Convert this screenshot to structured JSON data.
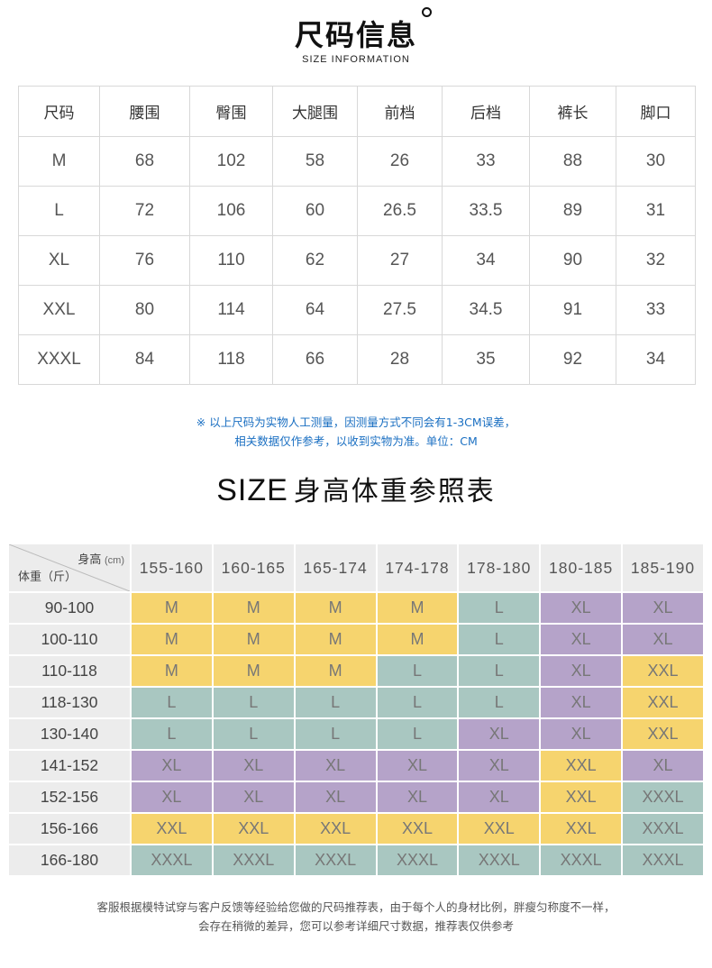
{
  "header": {
    "title": "尺码信息",
    "subtitle": "SIZE INFORMATION"
  },
  "size_table": {
    "headers": [
      "尺码",
      "腰围",
      "臀围",
      "大腿围",
      "前档",
      "后档",
      "裤长",
      "脚口"
    ],
    "rows": [
      [
        "M",
        "68",
        "102",
        "58",
        "26",
        "33",
        "88",
        "30"
      ],
      [
        "L",
        "72",
        "106",
        "60",
        "26.5",
        "33.5",
        "89",
        "31"
      ],
      [
        "XL",
        "76",
        "110",
        "62",
        "27",
        "34",
        "90",
        "32"
      ],
      [
        "XXL",
        "80",
        "114",
        "64",
        "27.5",
        "34.5",
        "91",
        "33"
      ],
      [
        "XXXL",
        "84",
        "118",
        "66",
        "28",
        "35",
        "92",
        "34"
      ]
    ]
  },
  "note": {
    "line1": "※  以上尺码为实物人工测量，因测量方式不同会有1-3CM误差，",
    "line2": "相关数据仅作参考，以收到实物为准。单位：CM"
  },
  "chart_title": {
    "en": "SIZE",
    "cn": "身高体重参照表"
  },
  "grid": {
    "corner_height_label": "身高",
    "corner_height_unit": "(cm)",
    "corner_weight_label": "体重（斤）",
    "heights": [
      "155-160",
      "160-165",
      "165-174",
      "174-178",
      "178-180",
      "180-185",
      "185-190"
    ],
    "weights": [
      "90-100",
      "100-110",
      "110-118",
      "118-130",
      "130-140",
      "141-152",
      "152-156",
      "156-166",
      "166-180"
    ],
    "sizes": [
      [
        "M",
        "M",
        "M",
        "M",
        "L",
        "XL",
        "XL"
      ],
      [
        "M",
        "M",
        "M",
        "M",
        "L",
        "XL",
        "XL"
      ],
      [
        "M",
        "M",
        "M",
        "L",
        "L",
        "XL",
        "XXL"
      ],
      [
        "L",
        "L",
        "L",
        "L",
        "L",
        "XL",
        "XXL"
      ],
      [
        "L",
        "L",
        "L",
        "L",
        "XL",
        "XL",
        "XXL"
      ],
      [
        "XL",
        "XL",
        "XL",
        "XL",
        "XL",
        "XXL",
        "XL"
      ],
      [
        "XL",
        "XL",
        "XL",
        "XL",
        "XL",
        "XXL",
        "XXXL"
      ],
      [
        "XXL",
        "XXL",
        "XXL",
        "XXL",
        "XXL",
        "XXL",
        "XXXL"
      ],
      [
        "XXXL",
        "XXXL",
        "XXXL",
        "XXXL",
        "XXXL",
        "XXXL",
        "XXXL"
      ]
    ],
    "colors": {
      "M": "#f6d46e",
      "L": "#a9c7c1",
      "XL": "#b5a3c9",
      "XXL": "#f6d46e",
      "XXXL": "#a9c7c1"
    }
  },
  "footer": {
    "line1": "客服根据模特试穿与客户反馈等经验给您做的尺码推荐表，由于每个人的身材比例，胖瘦匀称度不一样，",
    "line2": "会存在稍微的差异，您可以参考详细尺寸数据，推荐表仅供参考"
  }
}
